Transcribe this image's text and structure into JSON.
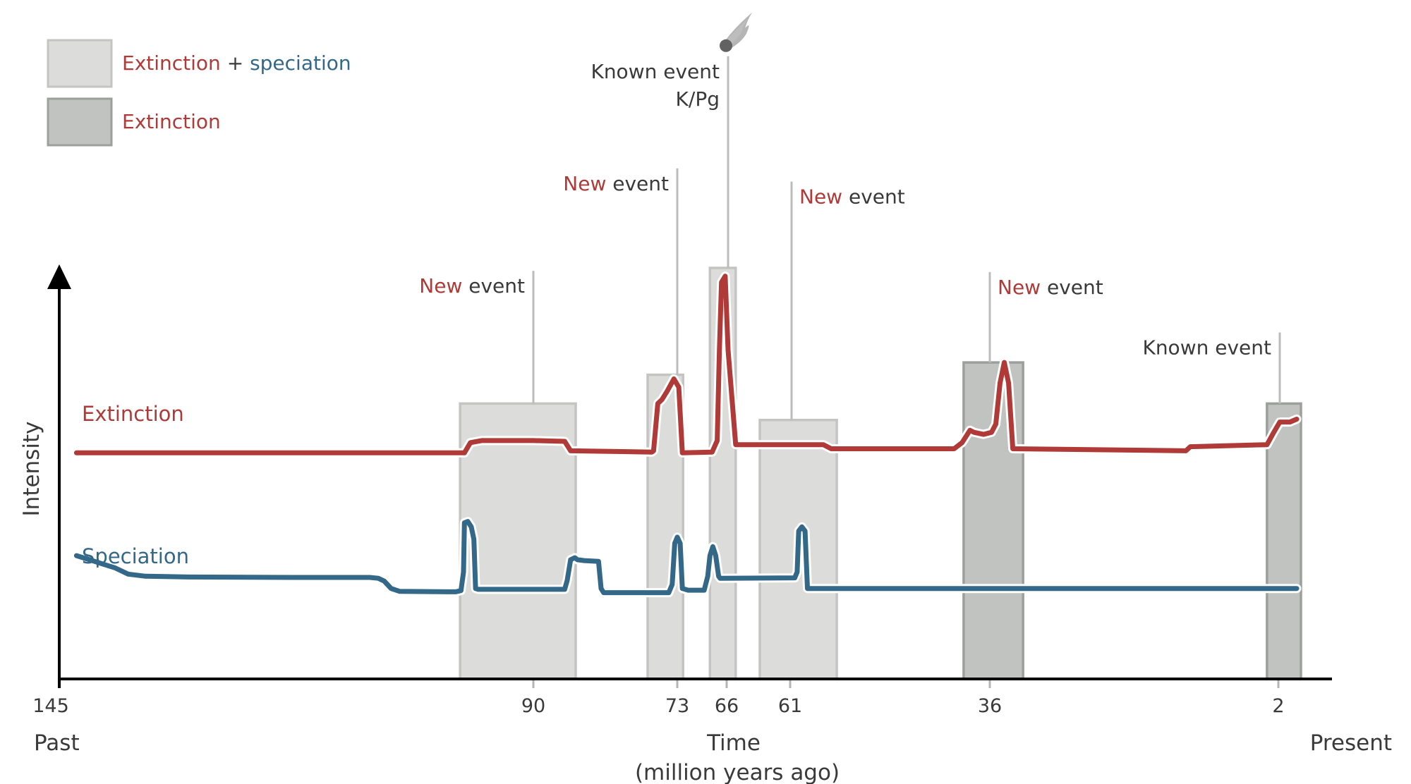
{
  "colors": {
    "extinction": "#b03a38",
    "speciation": "#336888",
    "text_dark": "#3a3a3a",
    "box_light_fill": "#dcdcdb",
    "box_light_stroke": "#c4c4c3",
    "box_dark_fill": "#c1c3c0",
    "box_dark_stroke": "#9d9f9c",
    "leader": "#bcbcbb",
    "axis": "#000000"
  },
  "legend": {
    "items": [
      {
        "type": "both",
        "parts": [
          {
            "text": "Extinction",
            "role": "extinction"
          },
          {
            "text": " + ",
            "role": "plain"
          },
          {
            "text": "speciation",
            "role": "speciation"
          }
        ]
      },
      {
        "type": "extinction",
        "parts": [
          {
            "text": "Extinction",
            "role": "extinction"
          }
        ]
      }
    ]
  },
  "chart_data": {
    "type": "line",
    "title": "",
    "xlabel": "Time",
    "xlabel_sub": "(million years ago)",
    "ylabel": "Intensity",
    "x_start_label": "Past",
    "x_end_label": "Present",
    "xlim": [
      145,
      0
    ],
    "ylim": [
      0,
      1
    ],
    "x_ticks": [
      145,
      90,
      73,
      66,
      61,
      36,
      2
    ],
    "tick_labels": [
      "145",
      "90",
      "73",
      "66",
      "61",
      "36",
      "2"
    ],
    "grid": false,
    "series": [
      {
        "name": "Extinction",
        "label_text": "Extinction",
        "color_role": "extinction",
        "points": [
          [
            143,
            0.55
          ],
          [
            98,
            0.55
          ],
          [
            97.3,
            0.575
          ],
          [
            96,
            0.58
          ],
          [
            90,
            0.58
          ],
          [
            86.3,
            0.578
          ],
          [
            85.6,
            0.555
          ],
          [
            76,
            0.552
          ],
          [
            75.8,
            0.555
          ],
          [
            75.3,
            0.67
          ],
          [
            74.8,
            0.68
          ],
          [
            74.2,
            0.7
          ],
          [
            73.4,
            0.73
          ],
          [
            72.8,
            0.71
          ],
          [
            72.3,
            0.55
          ],
          [
            68.2,
            0.552
          ],
          [
            67.5,
            0.58
          ],
          [
            67.2,
            0.8
          ],
          [
            66.9,
            0.965
          ],
          [
            66.4,
            0.98
          ],
          [
            66,
            0.8
          ],
          [
            65.4,
            0.57
          ],
          [
            57,
            0.57
          ],
          [
            56,
            0.56
          ],
          [
            40.5,
            0.56
          ],
          [
            39.5,
            0.575
          ],
          [
            38.5,
            0.605
          ],
          [
            38,
            0.6
          ],
          [
            36.8,
            0.595
          ],
          [
            35.8,
            0.6
          ],
          [
            35.3,
            0.62
          ],
          [
            34.8,
            0.72
          ],
          [
            34.3,
            0.77
          ],
          [
            33.8,
            0.72
          ],
          [
            33.3,
            0.56
          ],
          [
            13,
            0.555
          ],
          [
            12.5,
            0.565
          ],
          [
            3.5,
            0.57
          ],
          [
            2.7,
            0.6
          ],
          [
            2,
            0.625
          ],
          [
            0.8,
            0.625
          ],
          [
            0,
            0.632
          ]
        ]
      },
      {
        "name": "Speciation",
        "label_text": "Speciation",
        "color_role": "speciation",
        "points": [
          [
            143,
            0.3
          ],
          [
            141.5,
            0.29
          ],
          [
            140,
            0.28
          ],
          [
            138.5,
            0.27
          ],
          [
            137,
            0.255
          ],
          [
            135,
            0.25
          ],
          [
            130,
            0.248
          ],
          [
            118,
            0.247
          ],
          [
            109,
            0.247
          ],
          [
            108,
            0.245
          ],
          [
            107.3,
            0.238
          ],
          [
            106.5,
            0.22
          ],
          [
            105.5,
            0.213
          ],
          [
            99,
            0.212
          ],
          [
            98.4,
            0.215
          ],
          [
            98.1,
            0.26
          ],
          [
            98,
            0.38
          ],
          [
            97.6,
            0.383
          ],
          [
            97.2,
            0.37
          ],
          [
            96.9,
            0.34
          ],
          [
            96.7,
            0.22
          ],
          [
            96.4,
            0.218
          ],
          [
            86.3,
            0.218
          ],
          [
            86,
            0.24
          ],
          [
            85.6,
            0.29
          ],
          [
            85.1,
            0.295
          ],
          [
            84.8,
            0.29
          ],
          [
            84,
            0.288
          ],
          [
            82.3,
            0.286
          ],
          [
            82,
            0.22
          ],
          [
            81.7,
            0.21
          ],
          [
            74,
            0.21
          ],
          [
            73.6,
            0.23
          ],
          [
            73.3,
            0.33
          ],
          [
            73,
            0.345
          ],
          [
            72.6,
            0.33
          ],
          [
            72.3,
            0.22
          ],
          [
            71.5,
            0.216
          ],
          [
            69.3,
            0.216
          ],
          [
            68.8,
            0.25
          ],
          [
            68.5,
            0.3
          ],
          [
            68.1,
            0.322
          ],
          [
            67.7,
            0.3
          ],
          [
            67.3,
            0.25
          ],
          [
            67.1,
            0.245
          ],
          [
            60.6,
            0.246
          ],
          [
            60.3,
            0.26
          ],
          [
            60.1,
            0.36
          ],
          [
            59.7,
            0.37
          ],
          [
            59.3,
            0.36
          ],
          [
            59,
            0.22
          ],
          [
            0,
            0.22
          ]
        ]
      }
    ],
    "event_windows": [
      {
        "tick": 90,
        "start": 98.5,
        "end": 85.0,
        "kind": "extinction+speciation",
        "box_top": 0.67,
        "callout": "New event",
        "callout_highlight": "New",
        "callout_line2": "",
        "callout_top": 0.993,
        "text_side": "left",
        "icon": ""
      },
      {
        "tick": 73,
        "start": 76.5,
        "end": 72.2,
        "kind": "extinction+speciation",
        "box_top": 0.74,
        "callout": "New event",
        "callout_highlight": "New",
        "callout_line2": "",
        "callout_top": 1.242,
        "text_side": "left",
        "icon": ""
      },
      {
        "tick": 66,
        "start": 68.5,
        "end": 65.4,
        "kind": "extinction+speciation",
        "box_top": 1.0,
        "callout": "Known event",
        "callout_highlight": "",
        "callout_line2": "K/Pg",
        "callout_top": 1.515,
        "text_side": "left",
        "icon": "meteor-icon"
      },
      {
        "tick": 61,
        "start": 63.5,
        "end": 55.3,
        "kind": "extinction+speciation",
        "box_top": 0.63,
        "callout": "New event",
        "callout_highlight": "New",
        "callout_line2": "",
        "callout_top": 1.21,
        "text_side": "right",
        "icon": ""
      },
      {
        "tick": 36,
        "start": 39.3,
        "end": 32.1,
        "kind": "extinction",
        "box_top": 0.77,
        "callout": "New event",
        "callout_highlight": "New",
        "callout_line2": "",
        "callout_top": 0.99,
        "text_side": "right",
        "icon": ""
      },
      {
        "tick": 2,
        "start": 3.5,
        "end": -0.5,
        "kind": "extinction",
        "box_top": 0.67,
        "callout": "Known event",
        "callout_highlight": "",
        "callout_line2": "",
        "callout_top": 0.843,
        "text_side": "left",
        "icon": ""
      }
    ]
  }
}
